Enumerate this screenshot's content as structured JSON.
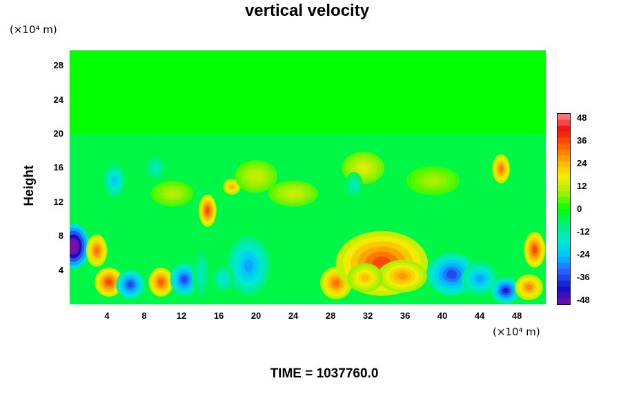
{
  "chart_data": {
    "type": "heatmap",
    "title": "vertical velocity",
    "ylabel": "Height",
    "y_unit": "(×10⁴ m)",
    "x_unit": "(×10⁴ m)",
    "y_ticks": [
      "28",
      "24",
      "20",
      "16",
      "12",
      "8",
      "4"
    ],
    "x_ticks": [
      "4",
      "8",
      "12",
      "16",
      "20",
      "24",
      "28",
      "32",
      "36",
      "40",
      "44",
      "48"
    ],
    "xlim": [
      0,
      51.1
    ],
    "ylim": [
      0,
      29.8
    ],
    "colorbar_ticks": [
      "48",
      "36",
      "24",
      "12",
      "0",
      "-12",
      "-24",
      "-36",
      "-48"
    ],
    "colorbar_range": [
      -48,
      48
    ],
    "colormap": [
      "#7a0fa8",
      "#1010c0",
      "#2a5cff",
      "#00c0ff",
      "#00e8d0",
      "#00f080",
      "#00ff00",
      "#9ef000",
      "#f0f000",
      "#ffb000",
      "#ff6000",
      "#ee1010",
      "#ff8a8a"
    ],
    "background_value": 0,
    "features": [
      {
        "x": 0.4,
        "y": 6.8,
        "sx": 0.9,
        "sy": 1.4,
        "value": -54
      },
      {
        "x": 2.9,
        "y": 6.3,
        "sx": 0.6,
        "sy": 1.0,
        "value": 30
      },
      {
        "x": 4.2,
        "y": 2.6,
        "sx": 0.8,
        "sy": 0.9,
        "value": 34
      },
      {
        "x": 6.5,
        "y": 2.3,
        "sx": 0.8,
        "sy": 0.9,
        "value": -34
      },
      {
        "x": 9.8,
        "y": 2.6,
        "sx": 0.7,
        "sy": 0.9,
        "value": 32
      },
      {
        "x": 12.3,
        "y": 2.9,
        "sx": 0.8,
        "sy": 1.0,
        "value": -34
      },
      {
        "x": 14.1,
        "y": 3.6,
        "sx": 0.5,
        "sy": 1.6,
        "value": -14
      },
      {
        "x": 14.8,
        "y": 11.0,
        "sx": 0.5,
        "sy": 1.0,
        "value": 34
      },
      {
        "x": 17.4,
        "y": 13.8,
        "sx": 0.5,
        "sy": 0.5,
        "value": 24
      },
      {
        "x": 19.2,
        "y": 4.5,
        "sx": 1.2,
        "sy": 1.8,
        "value": -26
      },
      {
        "x": 16.5,
        "y": 3.0,
        "sx": 0.6,
        "sy": 0.8,
        "value": -18
      },
      {
        "x": 4.8,
        "y": 14.5,
        "sx": 0.6,
        "sy": 1.0,
        "value": -22
      },
      {
        "x": 28.6,
        "y": 2.5,
        "sx": 0.9,
        "sy": 1.0,
        "value": 30
      },
      {
        "x": 33.5,
        "y": 4.8,
        "sx": 2.6,
        "sy": 2.0,
        "value": 34
      },
      {
        "x": 35.7,
        "y": 3.3,
        "sx": 1.4,
        "sy": 1.0,
        "value": 26
      },
      {
        "x": 31.7,
        "y": 3.1,
        "sx": 1.0,
        "sy": 0.9,
        "value": 22
      },
      {
        "x": 41.0,
        "y": 3.5,
        "sx": 1.4,
        "sy": 1.3,
        "value": -34
      },
      {
        "x": 44.0,
        "y": 3.0,
        "sx": 1.0,
        "sy": 1.0,
        "value": -26
      },
      {
        "x": 46.8,
        "y": 1.6,
        "sx": 0.8,
        "sy": 0.8,
        "value": -38
      },
      {
        "x": 49.3,
        "y": 2.0,
        "sx": 0.8,
        "sy": 0.8,
        "value": 28
      },
      {
        "x": 49.9,
        "y": 6.4,
        "sx": 0.6,
        "sy": 1.1,
        "value": 34
      },
      {
        "x": 46.3,
        "y": 15.9,
        "sx": 0.5,
        "sy": 0.9,
        "value": 30
      },
      {
        "x": 31.5,
        "y": 16.0,
        "sx": 1.2,
        "sy": 1.0,
        "value": 14
      },
      {
        "x": 20.0,
        "y": 15.0,
        "sx": 1.2,
        "sy": 1.0,
        "value": 12
      },
      {
        "x": 24.0,
        "y": 13.0,
        "sx": 1.4,
        "sy": 0.8,
        "value": 12
      },
      {
        "x": 11.0,
        "y": 13.0,
        "sx": 1.2,
        "sy": 0.8,
        "value": 10
      },
      {
        "x": 39.0,
        "y": 14.5,
        "sx": 1.5,
        "sy": 0.9,
        "value": 9
      },
      {
        "x": 9.2,
        "y": 16.0,
        "sx": 0.6,
        "sy": 0.8,
        "value": -14
      },
      {
        "x": 30.5,
        "y": 14.0,
        "sx": 0.5,
        "sy": 0.8,
        "value": -14
      }
    ],
    "lower_band_top": 20,
    "lower_band_value": -8
  },
  "footer": {
    "time_label": "TIME = 1037760.0"
  }
}
